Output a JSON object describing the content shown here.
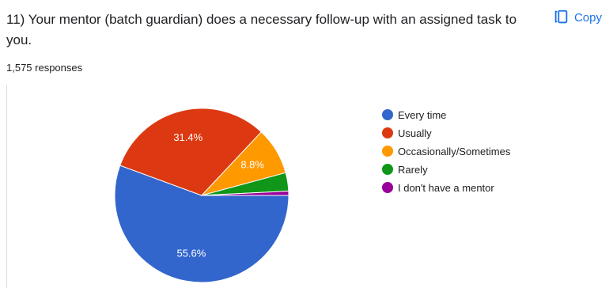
{
  "header": {
    "question": "11) Your mentor (batch guardian) does a necessary follow-up with an assigned task to you.",
    "copy_label": "Copy",
    "copy_icon": "copy-icon",
    "responses": "1,575 responses"
  },
  "chart_data": {
    "type": "pie",
    "title": "",
    "categories": [
      "Every time",
      "Usually",
      "Occasionally/Sometimes",
      "Rarely",
      "I don't have a mentor"
    ],
    "values": [
      55.6,
      31.4,
      8.8,
      3.4,
      0.8
    ],
    "data_labels": [
      "55.6%",
      "31.4%",
      "8.8%",
      "",
      ""
    ],
    "colors": [
      "#3366cc",
      "#dc3912",
      "#ff9900",
      "#109618",
      "#990099"
    ],
    "legend": "right"
  }
}
